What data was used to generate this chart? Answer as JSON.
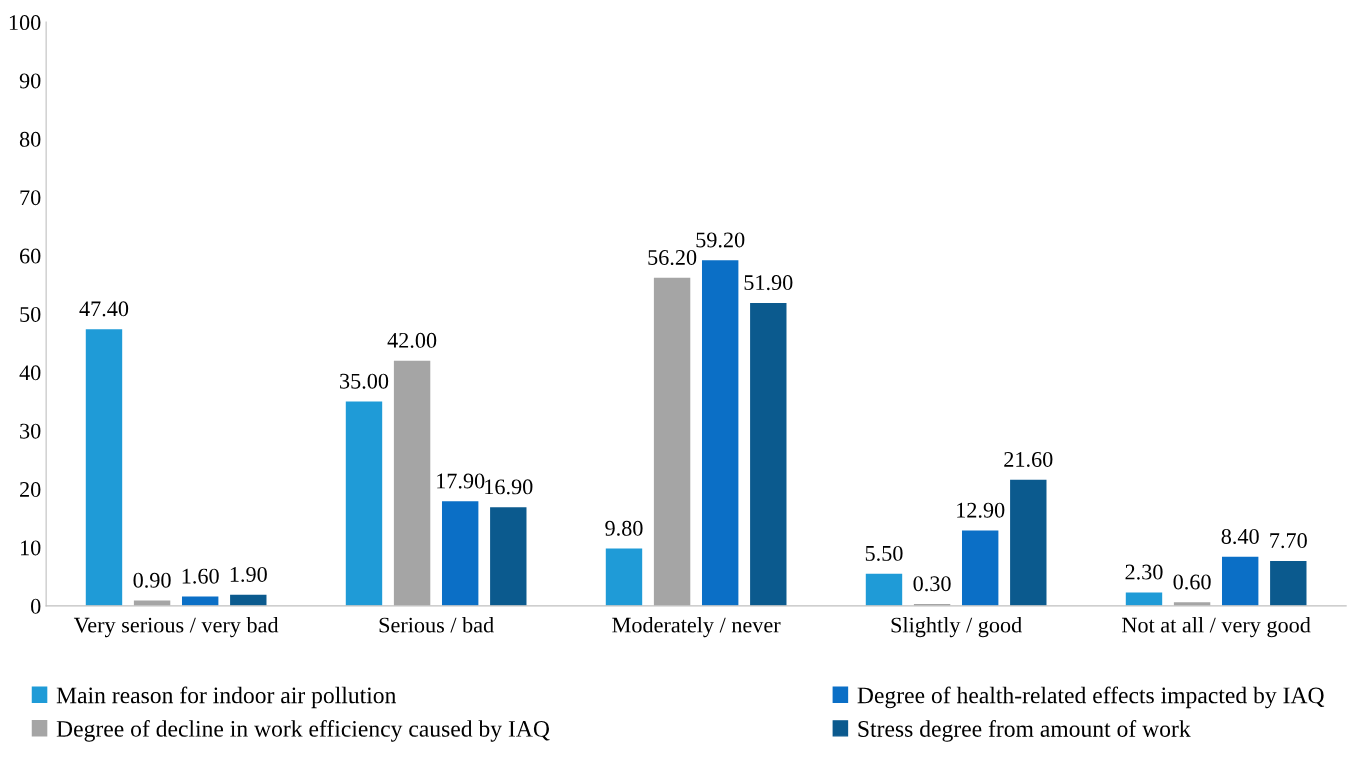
{
  "chart_data": {
    "type": "bar",
    "categories": [
      "Very serious / very bad",
      "Serious / bad",
      "Moderately / never",
      "Slightly / good",
      "Not at all / very good"
    ],
    "series": [
      {
        "name": "Main reason for indoor air pollution",
        "color": "#1f9bd7",
        "values": [
          47.4,
          35.0,
          9.8,
          5.5,
          2.3
        ],
        "value_labels": [
          "47.40",
          "35.00",
          "9.80",
          "5.50",
          "2.30"
        ]
      },
      {
        "name": "Degree of decline in work efficiency caused by IAQ",
        "color": "#a5a5a5",
        "values": [
          0.9,
          42.0,
          56.2,
          0.3,
          0.6
        ],
        "value_labels": [
          "0.90",
          "42.00",
          "56.20",
          "0.30",
          "0.60"
        ]
      },
      {
        "name": "Degree of health-related effects impacted by IAQ",
        "color": "#0b6fc6",
        "values": [
          1.6,
          17.9,
          59.2,
          12.9,
          8.4
        ],
        "value_labels": [
          "1.60",
          "17.90",
          "59.20",
          "12.90",
          "8.40"
        ]
      },
      {
        "name": "Stress degree from amount of work",
        "color": "#0b5a8e",
        "values": [
          1.9,
          16.9,
          51.9,
          21.6,
          7.7
        ],
        "value_labels": [
          "1.90",
          "16.90",
          "51.90",
          "21.60",
          "7.70"
        ]
      }
    ],
    "ylim": [
      0,
      100
    ],
    "yticks": [
      0,
      10,
      20,
      30,
      40,
      50,
      60,
      70,
      80,
      90,
      100
    ],
    "grid": false,
    "legend": "bottom"
  }
}
